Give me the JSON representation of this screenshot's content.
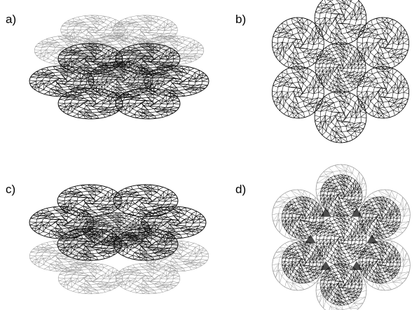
{
  "panels": [
    {
      "id": "a",
      "label": "a)",
      "view": "oblique",
      "shell": "top"
    },
    {
      "id": "b",
      "label": "b)",
      "view": "top",
      "shell": "top"
    },
    {
      "id": "c",
      "label": "c)",
      "view": "oblique",
      "shell": "bottom"
    },
    {
      "id": "d",
      "label": "d)",
      "view": "top",
      "shell": "bottom"
    }
  ],
  "colors": {
    "dark_mesh": "#111111",
    "light_mesh": "#9a9a9a",
    "background": "#ffffff"
  }
}
